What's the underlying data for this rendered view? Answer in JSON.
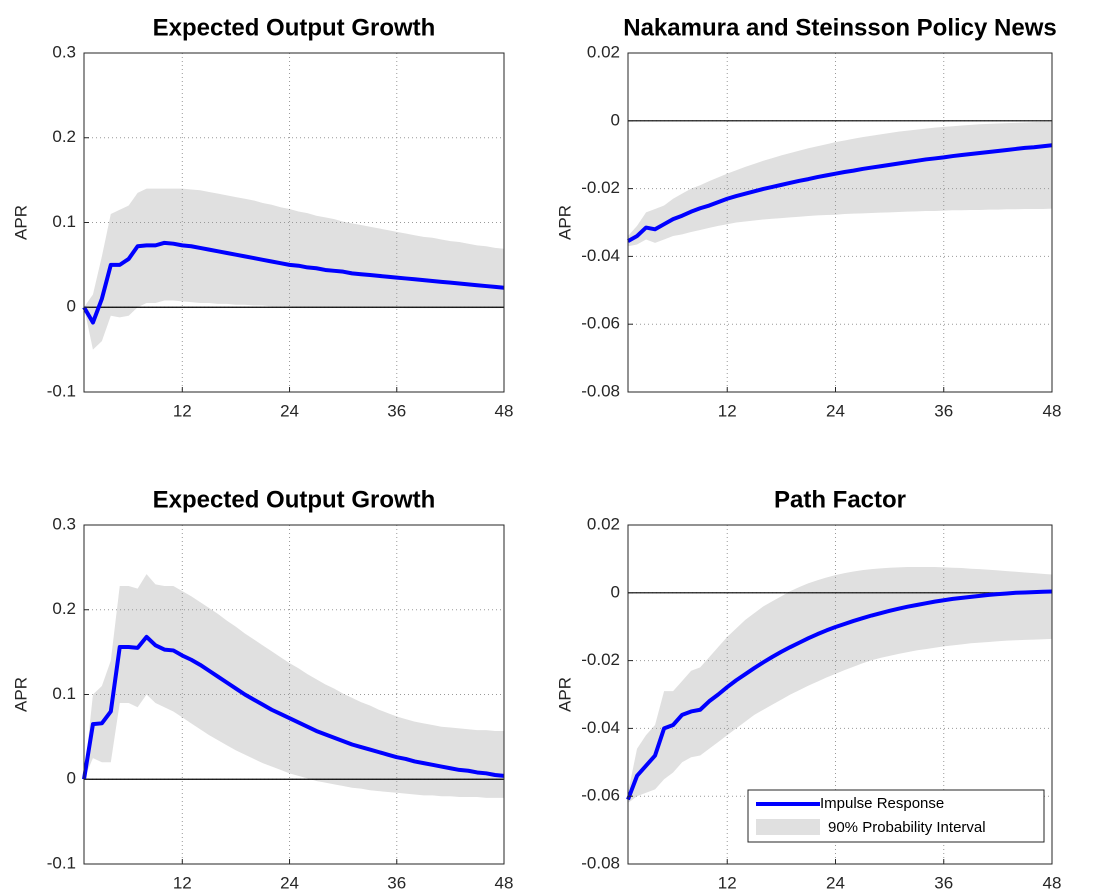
{
  "chart_data": [
    {
      "type": "line",
      "title": "Expected Output Growth",
      "ylabel": "APR",
      "x": [
        1,
        2,
        3,
        4,
        5,
        6,
        7,
        8,
        9,
        10,
        11,
        12,
        13,
        14,
        15,
        16,
        17,
        18,
        19,
        20,
        21,
        22,
        23,
        24,
        25,
        26,
        27,
        28,
        29,
        30,
        31,
        32,
        33,
        34,
        35,
        36,
        37,
        38,
        39,
        40,
        41,
        42,
        43,
        44,
        45,
        46,
        47,
        48
      ],
      "xlim": [
        1,
        48
      ],
      "xticks": [
        12,
        24,
        36,
        48
      ],
      "ylim": [
        -0.1,
        0.3
      ],
      "yticks": [
        -0.1,
        0,
        0.1,
        0.2,
        0.3
      ],
      "grid": true,
      "series": [
        {
          "color": "#0000ff",
          "values": [
            0,
            -0.018,
            0.01,
            0.05,
            0.05,
            0.057,
            0.072,
            0.073,
            0.073,
            0.076,
            0.075,
            0.073,
            0.072,
            0.07,
            0.068,
            0.066,
            0.064,
            0.062,
            0.06,
            0.058,
            0.056,
            0.054,
            0.052,
            0.05,
            0.049,
            0.047,
            0.046,
            0.044,
            0.043,
            0.042,
            0.04,
            0.039,
            0.038,
            0.037,
            0.036,
            0.035,
            0.034,
            0.033,
            0.032,
            0.031,
            0.03,
            0.029,
            0.028,
            0.027,
            0.026,
            0.025,
            0.024,
            0.023
          ]
        }
      ],
      "band": {
        "color": "#e0e0e0",
        "lower": [
          0,
          -0.05,
          -0.04,
          -0.01,
          -0.012,
          -0.01,
          0,
          0.005,
          0.005,
          0.008,
          0.008,
          0.007,
          0.006,
          0.005,
          0.005,
          0.004,
          0.004,
          0.003,
          0.003,
          0.002,
          0.002,
          0.001,
          0.001,
          0.001,
          0,
          0,
          0,
          0,
          0,
          0,
          0,
          0,
          0,
          0,
          0,
          0,
          -0.001,
          -0.001,
          -0.001,
          -0.001,
          -0.001,
          -0.001,
          -0.001,
          -0.001,
          -0.001,
          -0.001,
          -0.001,
          -0.001
        ],
        "upper": [
          0,
          0.015,
          0.06,
          0.11,
          0.115,
          0.12,
          0.135,
          0.14,
          0.14,
          0.14,
          0.14,
          0.14,
          0.139,
          0.138,
          0.136,
          0.134,
          0.132,
          0.13,
          0.128,
          0.126,
          0.123,
          0.121,
          0.118,
          0.116,
          0.113,
          0.111,
          0.108,
          0.106,
          0.104,
          0.101,
          0.099,
          0.097,
          0.095,
          0.093,
          0.091,
          0.089,
          0.087,
          0.085,
          0.083,
          0.082,
          0.08,
          0.078,
          0.077,
          0.075,
          0.073,
          0.072,
          0.07,
          0.069
        ]
      }
    },
    {
      "type": "line",
      "title": "Nakamura and Steinsson Policy News",
      "ylabel": "APR",
      "x": [
        1,
        2,
        3,
        4,
        5,
        6,
        7,
        8,
        9,
        10,
        11,
        12,
        13,
        14,
        15,
        16,
        17,
        18,
        19,
        20,
        21,
        22,
        23,
        24,
        25,
        26,
        27,
        28,
        29,
        30,
        31,
        32,
        33,
        34,
        35,
        36,
        37,
        38,
        39,
        40,
        41,
        42,
        43,
        44,
        45,
        46,
        47,
        48
      ],
      "xlim": [
        1,
        48
      ],
      "xticks": [
        12,
        24,
        36,
        48
      ],
      "ylim": [
        -0.08,
        0.02
      ],
      "yticks": [
        -0.08,
        -0.06,
        -0.04,
        -0.02,
        0,
        0.02
      ],
      "grid": true,
      "series": [
        {
          "color": "#0000ff",
          "values": [
            -0.0355,
            -0.034,
            -0.0315,
            -0.032,
            -0.0305,
            -0.029,
            -0.028,
            -0.0268,
            -0.0258,
            -0.025,
            -0.024,
            -0.023,
            -0.0222,
            -0.0215,
            -0.0208,
            -0.0201,
            -0.0195,
            -0.0189,
            -0.0183,
            -0.0177,
            -0.0172,
            -0.0166,
            -0.0161,
            -0.0156,
            -0.0151,
            -0.0147,
            -0.0142,
            -0.0138,
            -0.0134,
            -0.013,
            -0.0126,
            -0.0122,
            -0.0118,
            -0.0114,
            -0.0111,
            -0.0108,
            -0.0104,
            -0.0101,
            -0.0098,
            -0.0095,
            -0.0092,
            -0.0089,
            -0.0086,
            -0.0083,
            -0.008,
            -0.0078,
            -0.0075,
            -0.0072
          ]
        }
      ],
      "band": {
        "color": "#e0e0e0",
        "lower": [
          -0.037,
          -0.0365,
          -0.035,
          -0.036,
          -0.035,
          -0.034,
          -0.0335,
          -0.0328,
          -0.0322,
          -0.0316,
          -0.031,
          -0.0305,
          -0.03,
          -0.0297,
          -0.0294,
          -0.0291,
          -0.0289,
          -0.0287,
          -0.0285,
          -0.0283,
          -0.0281,
          -0.0279,
          -0.0278,
          -0.0277,
          -0.0275,
          -0.0274,
          -0.0273,
          -0.0272,
          -0.0271,
          -0.027,
          -0.0269,
          -0.0268,
          -0.0267,
          -0.0266,
          -0.0266,
          -0.0265,
          -0.0264,
          -0.0264,
          -0.0263,
          -0.0263,
          -0.0262,
          -0.0262,
          -0.0261,
          -0.0261,
          -0.026,
          -0.026,
          -0.026,
          -0.0259
        ],
        "upper": [
          -0.034,
          -0.031,
          -0.027,
          -0.026,
          -0.025,
          -0.023,
          -0.0215,
          -0.02,
          -0.019,
          -0.0178,
          -0.0167,
          -0.0156,
          -0.0146,
          -0.0136,
          -0.0127,
          -0.0118,
          -0.011,
          -0.0102,
          -0.0095,
          -0.0088,
          -0.0081,
          -0.0075,
          -0.0069,
          -0.0063,
          -0.0058,
          -0.0053,
          -0.0048,
          -0.0044,
          -0.004,
          -0.0036,
          -0.0032,
          -0.0029,
          -0.0026,
          -0.0023,
          -0.002,
          -0.0018,
          -0.0016,
          -0.0014,
          -0.0012,
          -0.001,
          -0.0009,
          -0.0008,
          -0.0007,
          -0.0006,
          -0.0005,
          -0.0004,
          -0.0003,
          -0.0003
        ]
      }
    },
    {
      "type": "line",
      "title": "Expected Output Growth",
      "ylabel": "APR",
      "x": [
        1,
        2,
        3,
        4,
        5,
        6,
        7,
        8,
        9,
        10,
        11,
        12,
        13,
        14,
        15,
        16,
        17,
        18,
        19,
        20,
        21,
        22,
        23,
        24,
        25,
        26,
        27,
        28,
        29,
        30,
        31,
        32,
        33,
        34,
        35,
        36,
        37,
        38,
        39,
        40,
        41,
        42,
        43,
        44,
        45,
        46,
        47,
        48
      ],
      "xlim": [
        1,
        48
      ],
      "xticks": [
        12,
        24,
        36,
        48
      ],
      "ylim": [
        -0.1,
        0.3
      ],
      "yticks": [
        -0.1,
        0,
        0.1,
        0.2,
        0.3
      ],
      "grid": true,
      "series": [
        {
          "color": "#0000ff",
          "values": [
            0,
            0.065,
            0.066,
            0.08,
            0.156,
            0.156,
            0.155,
            0.168,
            0.158,
            0.153,
            0.152,
            0.146,
            0.141,
            0.135,
            0.128,
            0.121,
            0.114,
            0.107,
            0.1,
            0.094,
            0.088,
            0.082,
            0.077,
            0.072,
            0.067,
            0.062,
            0.057,
            0.053,
            0.049,
            0.045,
            0.041,
            0.038,
            0.035,
            0.032,
            0.029,
            0.026,
            0.024,
            0.021,
            0.019,
            0.017,
            0.015,
            0.013,
            0.011,
            0.01,
            0.008,
            0.007,
            0.005,
            0.004
          ]
        }
      ],
      "band": {
        "color": "#e0e0e0",
        "lower": [
          0,
          0.025,
          0.02,
          0.02,
          0.09,
          0.09,
          0.085,
          0.1,
          0.09,
          0.085,
          0.08,
          0.073,
          0.066,
          0.059,
          0.052,
          0.046,
          0.04,
          0.034,
          0.029,
          0.024,
          0.019,
          0.015,
          0.011,
          0.007,
          0.004,
          0.001,
          -0.002,
          -0.004,
          -0.006,
          -0.008,
          -0.01,
          -0.011,
          -0.013,
          -0.014,
          -0.015,
          -0.016,
          -0.017,
          -0.018,
          -0.019,
          -0.019,
          -0.02,
          -0.02,
          -0.021,
          -0.021,
          -0.021,
          -0.022,
          -0.022,
          -0.022
        ],
        "upper": [
          0,
          0.1,
          0.11,
          0.14,
          0.228,
          0.228,
          0.225,
          0.242,
          0.23,
          0.228,
          0.228,
          0.222,
          0.216,
          0.209,
          0.202,
          0.195,
          0.187,
          0.18,
          0.172,
          0.165,
          0.158,
          0.151,
          0.144,
          0.137,
          0.131,
          0.124,
          0.118,
          0.112,
          0.107,
          0.101,
          0.096,
          0.091,
          0.087,
          0.082,
          0.078,
          0.074,
          0.071,
          0.068,
          0.066,
          0.064,
          0.062,
          0.061,
          0.06,
          0.059,
          0.058,
          0.058,
          0.057,
          0.057
        ]
      }
    },
    {
      "type": "line",
      "title": "Path Factor",
      "ylabel": "APR",
      "x": [
        1,
        2,
        3,
        4,
        5,
        6,
        7,
        8,
        9,
        10,
        11,
        12,
        13,
        14,
        15,
        16,
        17,
        18,
        19,
        20,
        21,
        22,
        23,
        24,
        25,
        26,
        27,
        28,
        29,
        30,
        31,
        32,
        33,
        34,
        35,
        36,
        37,
        38,
        39,
        40,
        41,
        42,
        43,
        44,
        45,
        46,
        47,
        48
      ],
      "xlim": [
        1,
        48
      ],
      "xticks": [
        12,
        24,
        36,
        48
      ],
      "ylim": [
        -0.08,
        0.02
      ],
      "yticks": [
        -0.08,
        -0.06,
        -0.04,
        -0.02,
        0,
        0.02
      ],
      "grid": true,
      "legend": "lower right",
      "series": [
        {
          "name": "Impulse Response",
          "color": "#0000ff",
          "values": [
            -0.061,
            -0.054,
            -0.051,
            -0.048,
            -0.04,
            -0.039,
            -0.036,
            -0.035,
            -0.0345,
            -0.032,
            -0.03,
            -0.0278,
            -0.0258,
            -0.024,
            -0.0222,
            -0.0205,
            -0.0189,
            -0.0174,
            -0.016,
            -0.0147,
            -0.0134,
            -0.0122,
            -0.0111,
            -0.0101,
            -0.0092,
            -0.0083,
            -0.0075,
            -0.0067,
            -0.006,
            -0.0053,
            -0.0047,
            -0.0041,
            -0.0036,
            -0.0031,
            -0.0026,
            -0.0022,
            -0.0018,
            -0.0015,
            -0.0012,
            -0.0009,
            -0.0006,
            -0.0004,
            -0.0002,
            0,
            0.0001,
            0.0002,
            0.0003,
            0.0004
          ]
        }
      ],
      "band": {
        "name": "90% Probability Interval",
        "color": "#e0e0e0",
        "lower": [
          -0.062,
          -0.06,
          -0.059,
          -0.058,
          -0.055,
          -0.053,
          -0.05,
          -0.0485,
          -0.048,
          -0.046,
          -0.044,
          -0.042,
          -0.04,
          -0.038,
          -0.036,
          -0.0345,
          -0.033,
          -0.0315,
          -0.03,
          -0.0287,
          -0.0274,
          -0.0262,
          -0.025,
          -0.0239,
          -0.0228,
          -0.0218,
          -0.0208,
          -0.0199,
          -0.0192,
          -0.0186,
          -0.018,
          -0.0175,
          -0.017,
          -0.0166,
          -0.0162,
          -0.0158,
          -0.0155,
          -0.0152,
          -0.0149,
          -0.0147,
          -0.0145,
          -0.0143,
          -0.0141,
          -0.014,
          -0.0139,
          -0.0138,
          -0.0137,
          -0.0136
        ],
        "upper": [
          -0.059,
          -0.046,
          -0.042,
          -0.039,
          -0.029,
          -0.029,
          -0.026,
          -0.023,
          -0.022,
          -0.019,
          -0.016,
          -0.013,
          -0.0105,
          -0.008,
          -0.006,
          -0.004,
          -0.0025,
          -0.001,
          0.0005,
          0.0017,
          0.0028,
          0.0037,
          0.0045,
          0.0052,
          0.0058,
          0.0063,
          0.0067,
          0.007,
          0.0072,
          0.0074,
          0.0075,
          0.0076,
          0.0076,
          0.0076,
          0.0076,
          0.0075,
          0.0074,
          0.0073,
          0.0071,
          0.007,
          0.0068,
          0.0066,
          0.0064,
          0.0062,
          0.006,
          0.0058,
          0.0056,
          0.0054
        ]
      }
    }
  ]
}
